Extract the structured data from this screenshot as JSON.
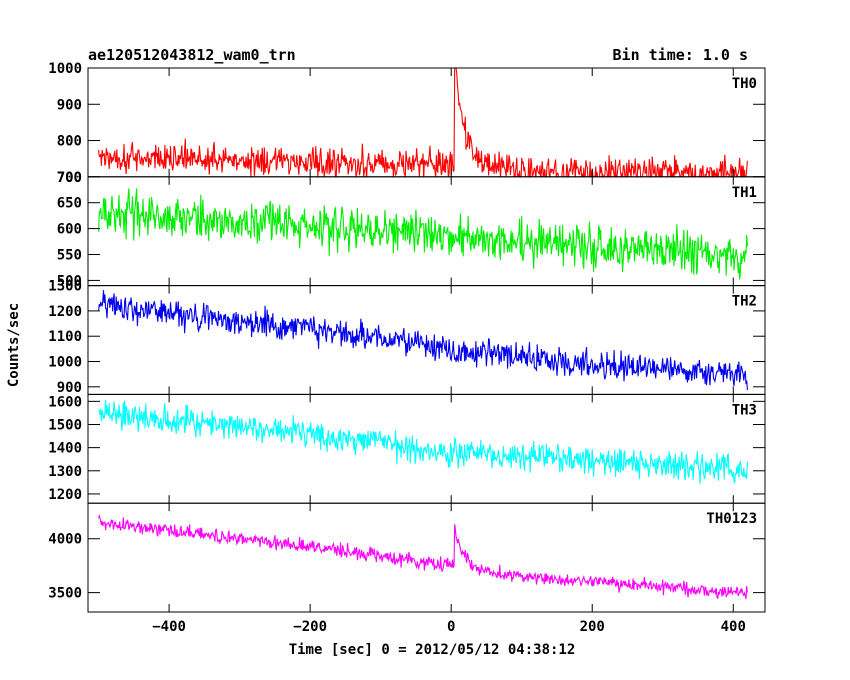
{
  "chart_data": {
    "type": "line",
    "title": "ae120512043812_wam0_trn",
    "bin_time_label": "Bin time: 1.0 s",
    "xlabel": "Time [sec] 0 = 2012/05/12 04:38:12",
    "ylabel": "Counts/sec",
    "xlim": [
      -515,
      445
    ],
    "xticks": [
      -400,
      -200,
      0,
      200,
      400
    ],
    "x_start": -500,
    "x_end": 420,
    "x_step": 1,
    "panels": [
      {
        "name": "TH0",
        "color": "#ff0000",
        "ylim": [
          700,
          1000
        ],
        "yticks": [
          700,
          800,
          900,
          1000
        ],
        "trend": [
          [
            -500,
            755
          ],
          [
            -400,
            752
          ],
          [
            -200,
            742
          ],
          [
            0,
            735
          ],
          [
            100,
            715
          ],
          [
            420,
            710
          ]
        ],
        "noise": 55,
        "burst": {
          "x": 5,
          "peak": 1000,
          "base": 735,
          "decay": 15
        }
      },
      {
        "name": "TH1",
        "color": "#00ee00",
        "ylim": [
          490,
          700
        ],
        "yticks": [
          500,
          550,
          600,
          650,
          700
        ],
        "trend": [
          [
            -500,
            632
          ],
          [
            -200,
            605
          ],
          [
            0,
            585
          ],
          [
            200,
            566
          ],
          [
            420,
            548
          ]
        ],
        "noise": 55,
        "burst": null
      },
      {
        "name": "TH2",
        "color": "#0000ee",
        "ylim": [
          870,
          1300
        ],
        "yticks": [
          900,
          1000,
          1100,
          1200,
          1300
        ],
        "trend": [
          [
            -500,
            1225
          ],
          [
            -200,
            1130
          ],
          [
            0,
            1045
          ],
          [
            200,
            990
          ],
          [
            420,
            940
          ]
        ],
        "noise": 75,
        "burst": null
      },
      {
        "name": "TH3",
        "color": "#00ffff",
        "ylim": [
          1160,
          1630
        ],
        "yticks": [
          1200,
          1300,
          1400,
          1500,
          1600
        ],
        "trend": [
          [
            -500,
            1555
          ],
          [
            -200,
            1460
          ],
          [
            0,
            1385
          ],
          [
            200,
            1345
          ],
          [
            420,
            1300
          ]
        ],
        "noise": 85,
        "burst": null
      },
      {
        "name": "TH0123",
        "color": "#ff00ff",
        "ylim": [
          3320,
          4330
        ],
        "yticks": [
          3500,
          4000
        ],
        "trend": [
          [
            -500,
            4150
          ],
          [
            -200,
            3930
          ],
          [
            0,
            3750
          ],
          [
            100,
            3650
          ],
          [
            420,
            3490
          ]
        ],
        "noise": 85,
        "burst": {
          "x": 5,
          "peak": 4120,
          "base": 3760,
          "decay": 12
        }
      }
    ]
  }
}
